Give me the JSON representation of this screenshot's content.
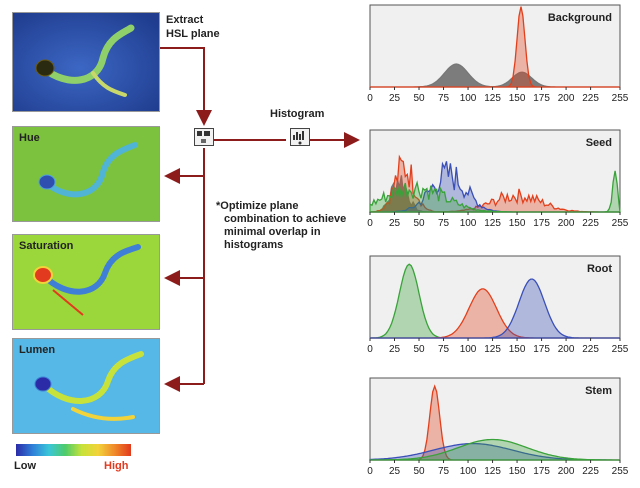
{
  "labels": {
    "extract": "Extract",
    "hsl_plane": "HSL plane",
    "histogram": "Histogram",
    "note_line1": "*Optimize plane",
    "note_line2": "combination to achieve",
    "note_line3": "minimal overlap in",
    "note_line4": "histograms",
    "legend_low": "Low",
    "legend_high": "High"
  },
  "planes": [
    {
      "label": "Hue"
    },
    {
      "label": "Saturation"
    },
    {
      "label": "Lumen"
    }
  ],
  "colors": {
    "arrow": "#8c1c1c",
    "hue_bg": "#7cc23f",
    "saturation_bg": "#9bd63a",
    "lumen_bg": "#55b8e6",
    "photo_bg": "#2e4fa8",
    "hist_bg": "#f0f0f0",
    "red_series": "#e2401c",
    "green_series": "#3aa23a",
    "blue_series": "#3a4fb8",
    "gray_series": "#777777"
  },
  "icons": [
    "extract-plane-block-icon",
    "histogram-block-icon"
  ],
  "chart_data": [
    {
      "type": "area",
      "title": "Background",
      "xlim": [
        0,
        255
      ],
      "x_ticks": [
        "0",
        "25",
        "50",
        "75",
        "100",
        "125",
        "150",
        "175",
        "200",
        "225",
        "255"
      ],
      "series": [
        {
          "color": "gray",
          "peaks": [
            {
              "x": 88,
              "height": 0.28,
              "width": 12
            },
            {
              "x": 155,
              "height": 0.18,
              "width": 10
            }
          ]
        },
        {
          "color": "red",
          "peaks": [
            {
              "x": 154,
              "height": 0.98,
              "width": 4
            }
          ]
        }
      ]
    },
    {
      "type": "area",
      "title": "Seed",
      "xlim": [
        0,
        255
      ],
      "x_ticks": [
        "0",
        "25",
        "50",
        "75",
        "100",
        "125",
        "150",
        "175",
        "200",
        "225",
        "255"
      ],
      "series": [
        {
          "color": "gray",
          "peaks": [
            {
              "x": 30,
              "height": 0.4,
              "width": 8
            }
          ]
        },
        {
          "color": "red",
          "peaks": [
            {
              "x": 35,
              "height": 0.55,
              "width": 10
            },
            {
              "x": 150,
              "height": 0.2,
              "width": 25
            }
          ]
        },
        {
          "color": "blue",
          "peaks": [
            {
              "x": 80,
              "height": 0.45,
              "width": 18
            }
          ]
        },
        {
          "color": "green",
          "peaks": [
            {
              "x": 45,
              "height": 0.3,
              "width": 30
            },
            {
              "x": 250,
              "height": 0.35,
              "width": 3
            }
          ]
        }
      ]
    },
    {
      "type": "area",
      "title": "Root",
      "xlim": [
        0,
        255
      ],
      "x_ticks": [
        "0",
        "25",
        "50",
        "75",
        "100",
        "125",
        "150",
        "175",
        "200",
        "225",
        "255"
      ],
      "series": [
        {
          "color": "green",
          "peaks": [
            {
              "x": 40,
              "height": 0.9,
              "width": 10
            }
          ]
        },
        {
          "color": "red",
          "peaks": [
            {
              "x": 115,
              "height": 0.6,
              "width": 14
            }
          ]
        },
        {
          "color": "blue",
          "peaks": [
            {
              "x": 165,
              "height": 0.72,
              "width": 13
            }
          ]
        }
      ]
    },
    {
      "type": "area",
      "title": "Stem",
      "xlim": [
        0,
        255
      ],
      "x_ticks": [
        "0",
        "25",
        "50",
        "75",
        "100",
        "125",
        "150",
        "175",
        "200",
        "225",
        "255"
      ],
      "series": [
        {
          "color": "red",
          "peaks": [
            {
              "x": 66,
              "height": 0.9,
              "width": 5
            }
          ]
        },
        {
          "color": "blue",
          "peaks": [
            {
              "x": 105,
              "height": 0.2,
              "width": 40
            }
          ]
        },
        {
          "color": "green",
          "peaks": [
            {
              "x": 125,
              "height": 0.25,
              "width": 35
            }
          ]
        }
      ]
    }
  ]
}
